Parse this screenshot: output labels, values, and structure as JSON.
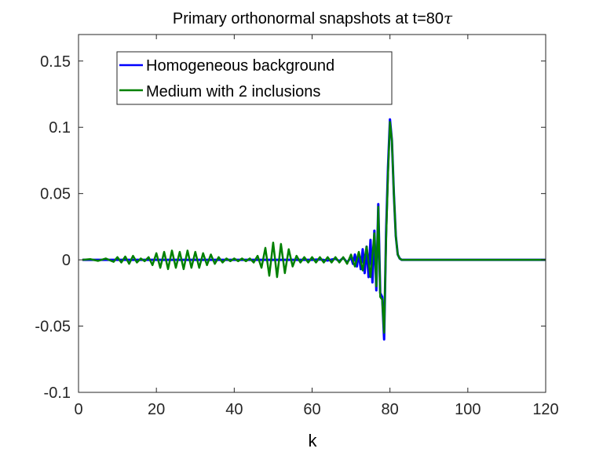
{
  "chart_data": {
    "type": "line",
    "title": "Primary orthonormal snapshots at t=80",
    "title_symbol": "τ",
    "xlabel": "k",
    "ylabel": "",
    "xlim": [
      0,
      120
    ],
    "ylim": [
      -0.1,
      0.17
    ],
    "xticks": [
      0,
      20,
      40,
      60,
      80,
      100,
      120
    ],
    "xtick_labels": [
      "0",
      "20",
      "40",
      "60",
      "80",
      "100",
      "120"
    ],
    "yticks": [
      -0.1,
      -0.05,
      0,
      0.05,
      0.1,
      0.15
    ],
    "ytick_labels": [
      "-0.1",
      "-0.05",
      "0",
      "0.05",
      "0.1",
      "0.15"
    ],
    "grid": false,
    "legend_position": "top-left",
    "series": [
      {
        "name": "Homogeneous background",
        "color": "#0000ff",
        "x": [
          1,
          3,
          5,
          7,
          10,
          15,
          20,
          25,
          30,
          35,
          40,
          45,
          50,
          55,
          60,
          62,
          64,
          66,
          67,
          68,
          69,
          70,
          70.5,
          71,
          71.5,
          72,
          72.5,
          73,
          73.5,
          74,
          74.5,
          75,
          75.5,
          76,
          76.5,
          77,
          77.5,
          78,
          78.5,
          79,
          79.5,
          80,
          80.5,
          81,
          81.5,
          82,
          82.5,
          83,
          84,
          86,
          90,
          100,
          110,
          120
        ],
        "y": [
          0,
          0,
          0,
          0,
          0,
          0,
          0,
          0,
          0,
          0,
          0,
          0,
          0,
          0,
          0,
          0.0003,
          -0.0005,
          0.0008,
          -0.001,
          0.0015,
          -0.002,
          0.002,
          -0.003,
          0.004,
          -0.005,
          0.005,
          -0.007,
          0.008,
          -0.01,
          0.01,
          -0.013,
          0.015,
          -0.017,
          0.022,
          -0.023,
          0.042,
          -0.025,
          -0.028,
          -0.06,
          0.02,
          0.07,
          0.106,
          0.09,
          0.05,
          0.018,
          0.004,
          0.001,
          0,
          0,
          0,
          0,
          0,
          0,
          0
        ]
      },
      {
        "name": "Medium with 2 inclusions",
        "color": "#008000",
        "x": [
          1,
          3,
          5,
          7,
          9,
          10,
          11,
          12,
          13,
          14,
          15,
          16,
          17,
          18,
          19,
          20,
          21,
          22,
          23,
          24,
          25,
          26,
          27,
          28,
          29,
          30,
          31,
          32,
          33,
          34,
          35,
          36,
          37,
          38,
          39,
          40,
          41,
          42,
          43,
          44,
          45,
          46,
          47,
          48,
          49,
          50,
          51,
          52,
          53,
          54,
          55,
          56,
          57,
          58,
          59,
          60,
          61,
          62,
          63,
          64,
          65,
          66,
          67,
          68,
          69,
          70,
          71,
          72,
          73,
          74,
          75,
          76,
          76.5,
          77,
          77.5,
          78,
          78.5,
          79,
          79.5,
          80,
          80.5,
          81,
          81.5,
          82,
          82.5,
          83,
          84,
          86,
          90,
          100,
          110,
          120
        ],
        "y": [
          0,
          0.0005,
          -0.0008,
          0.001,
          -0.0015,
          0.002,
          -0.002,
          0.0025,
          -0.003,
          0.003,
          -0.002,
          0.001,
          -0.001,
          0.002,
          -0.004,
          0.005,
          -0.006,
          0.006,
          -0.007,
          0.007,
          -0.006,
          0.006,
          -0.007,
          0.007,
          -0.006,
          0.006,
          -0.006,
          0.005,
          -0.004,
          0.004,
          -0.003,
          0.002,
          -0.002,
          0.001,
          -0.001,
          0.001,
          -0.001,
          0.001,
          -0.001,
          0.001,
          -0.002,
          0.003,
          -0.006,
          0.009,
          -0.012,
          0.013,
          -0.013,
          0.012,
          -0.01,
          0.008,
          -0.005,
          0.003,
          -0.002,
          0.002,
          -0.002,
          0.002,
          -0.002,
          0.002,
          -0.002,
          0.002,
          -0.002,
          0.002,
          -0.002,
          0.002,
          -0.003,
          0.004,
          -0.005,
          0.006,
          -0.008,
          0.01,
          -0.013,
          0.02,
          -0.02,
          0.04,
          -0.028,
          -0.03,
          -0.055,
          0.015,
          0.065,
          0.104,
          0.09,
          0.05,
          0.018,
          0.004,
          0.001,
          0,
          0,
          0,
          0,
          0,
          0,
          0
        ]
      }
    ]
  }
}
